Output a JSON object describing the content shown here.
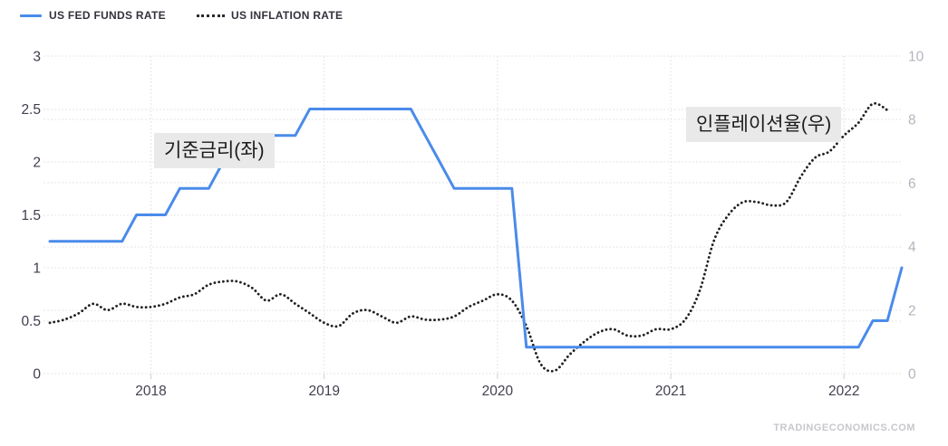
{
  "legend": {
    "fed_label": "US FED FUNDS RATE",
    "inflation_label": "US INFLATION RATE"
  },
  "annotations": {
    "left_label": "기준금리(좌)",
    "right_label": "인플레이션율(우)"
  },
  "watermark": "TRADINGECONOMICS.COM",
  "colors": {
    "fed_line": "#4a8bea",
    "inflation_line": "#202020",
    "grid": "#e5e5e9",
    "left_tick_text": "#3f3d4d",
    "right_tick_text": "#b5b4bf",
    "x_tick_text": "#43414f",
    "annotation_bg": "#e9e9e9",
    "watermark_text": "#c7c7cd"
  },
  "chart_data": {
    "type": "line",
    "title": "",
    "frequency": "monthly",
    "x_start": "2017-06",
    "x_tick_labels": [
      "2018",
      "2019",
      "2020",
      "2021",
      "2022"
    ],
    "x_tick_month_indices": [
      7,
      19,
      31,
      43,
      55
    ],
    "left_axis": {
      "ticks": [
        0,
        0.5,
        1,
        1.5,
        2,
        2.5,
        3
      ],
      "range": [
        0,
        3
      ]
    },
    "right_axis": {
      "ticks": [
        0,
        2,
        4,
        6,
        8,
        10
      ],
      "range": [
        0,
        10
      ]
    },
    "grid": true,
    "legend_position": "top-left",
    "series": [
      {
        "name": "US FED FUNDS RATE",
        "axis": "left",
        "line_style": "solid",
        "color": "#4a8bea",
        "values": [
          1.25,
          1.25,
          1.25,
          1.25,
          1.25,
          1.25,
          1.5,
          1.5,
          1.5,
          1.75,
          1.75,
          1.75,
          2,
          2,
          2,
          2.25,
          2.25,
          2.25,
          2.5,
          2.5,
          2.5,
          2.5,
          2.5,
          2.5,
          2.5,
          2.5,
          2.25,
          2,
          1.75,
          1.75,
          1.75,
          1.75,
          1.75,
          0.25,
          0.25,
          0.25,
          0.25,
          0.25,
          0.25,
          0.25,
          0.25,
          0.25,
          0.25,
          0.25,
          0.25,
          0.25,
          0.25,
          0.25,
          0.25,
          0.25,
          0.25,
          0.25,
          0.25,
          0.25,
          0.25,
          0.25,
          0.25,
          0.5,
          0.5,
          1
        ]
      },
      {
        "name": "US INFLATION RATE",
        "axis": "right",
        "line_style": "dotted",
        "color": "#202020",
        "values": [
          1.6,
          1.7,
          1.9,
          2.2,
          2.0,
          2.2,
          2.1,
          2.1,
          2.2,
          2.4,
          2.5,
          2.8,
          2.9,
          2.9,
          2.7,
          2.3,
          2.5,
          2.2,
          1.9,
          1.6,
          1.5,
          1.9,
          2.0,
          1.8,
          1.6,
          1.8,
          1.7,
          1.7,
          1.8,
          2.1,
          2.3,
          2.5,
          2.3,
          1.5,
          0.3,
          0.1,
          0.6,
          1.0,
          1.3,
          1.4,
          1.2,
          1.2,
          1.4,
          1.4,
          1.7,
          2.6,
          4.2,
          5.0,
          5.4,
          5.4,
          5.3,
          5.4,
          6.2,
          6.8,
          7.0,
          7.5,
          7.9,
          8.5,
          8.3
        ]
      }
    ]
  }
}
